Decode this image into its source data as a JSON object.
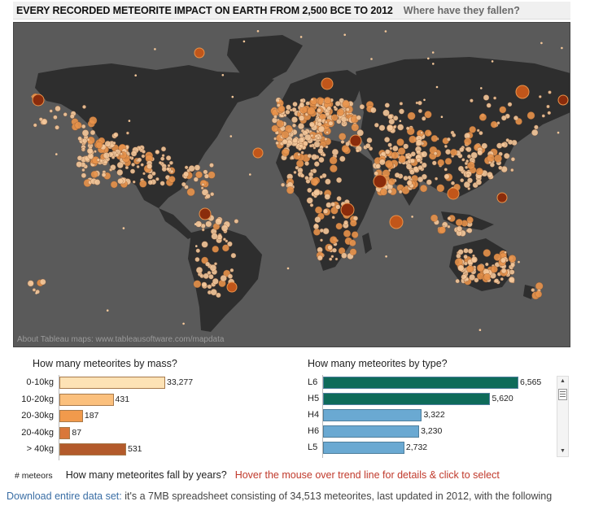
{
  "header": {
    "title": "EVERY RECORDED METEORITE IMPACT ON EARTH FROM 2,500 BCE TO 2012",
    "subtitle": "Where have they fallen?"
  },
  "map": {
    "credit": "About Tableau maps: www.tableausoftware.com/mapdata",
    "land_color": "#2e2e2e",
    "ocean_color": "#5a5a5a",
    "dot_colors": [
      "#f5c89a",
      "#e8924a",
      "#c1561a",
      "#8a2c0c"
    ]
  },
  "mass_panel": {
    "title": "How many meteorites by mass?",
    "chart_data": {
      "type": "bar",
      "orientation": "horizontal",
      "categories": [
        "0-10kg",
        "10-20kg",
        "20-30kg",
        "20-40kg",
        "> 40kg"
      ],
      "values": [
        33277,
        431,
        187,
        87,
        531
      ],
      "value_labels": [
        "33,277",
        "431",
        "187",
        "87",
        "531"
      ],
      "colors": [
        "#fde2b5",
        "#fbc07d",
        "#f19a4c",
        "#d9773a",
        "#b35a2b"
      ]
    }
  },
  "type_panel": {
    "title": "How many meteorites by type?",
    "chart_data": {
      "type": "bar",
      "orientation": "horizontal",
      "categories": [
        "L6",
        "H5",
        "H4",
        "H6",
        "L5"
      ],
      "values": [
        6565,
        5620,
        3322,
        3230,
        2732
      ],
      "value_labels": [
        "6,565",
        "5,620",
        "3,322",
        "3,230",
        "2,732"
      ],
      "colors": [
        "#0e6b5a",
        "#0e6b5a",
        "#6aa9d2",
        "#6aa9d2",
        "#6aa9d2"
      ]
    }
  },
  "scrollbar": {
    "up_icon": "▲",
    "down_icon": "▼"
  },
  "years_section": {
    "axis_label": "# meteors",
    "title": "How many meteorites fall by years?",
    "hint": "Hover the mouse over trend line for details & click to select"
  },
  "footer": {
    "download_link": "Download entire data set:",
    "description": " it's a 7MB spreadsheet consisting of 34,513 meteorites, last updated in 2012, with the following"
  }
}
